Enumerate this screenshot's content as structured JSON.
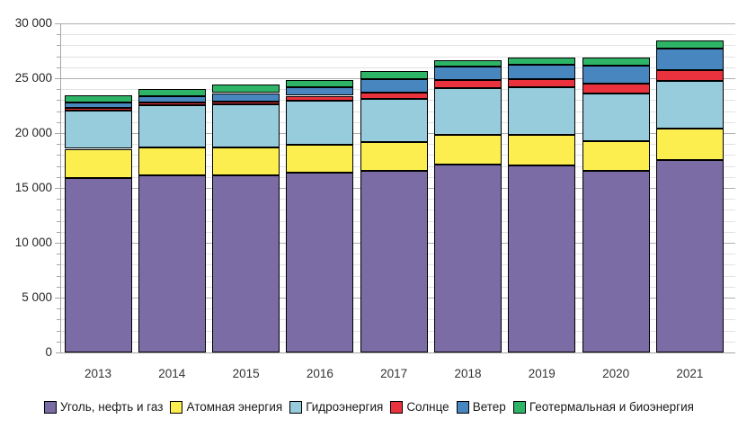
{
  "chart_data": {
    "type": "bar",
    "stacked": true,
    "title": "",
    "xlabel": "",
    "ylabel": "",
    "categories": [
      "2013",
      "2014",
      "2015",
      "2016",
      "2017",
      "2018",
      "2019",
      "2020",
      "2021"
    ],
    "series": [
      {
        "name": "Уголь, нефть и газ",
        "color": "#7b6ca5",
        "values": [
          15880,
          16150,
          16150,
          16400,
          16560,
          17110,
          17030,
          16560,
          17530
        ]
      },
      {
        "name": "Атомная энергия",
        "color": "#fcee4e",
        "values": [
          2680,
          2530,
          2530,
          2550,
          2610,
          2750,
          2830,
          2700,
          2880
        ]
      },
      {
        "name": "Гидроэнергия",
        "color": "#97ccdc",
        "values": [
          3520,
          3870,
          3960,
          4010,
          3960,
          4260,
          4310,
          4360,
          4310
        ]
      },
      {
        "name": "Солнце",
        "color": "#e9323d",
        "values": [
          250,
          250,
          270,
          440,
          580,
          740,
          770,
          910,
          1050
        ]
      },
      {
        "name": "Ветер",
        "color": "#4886c0",
        "values": [
          490,
          600,
          740,
          770,
          1230,
          1180,
          1290,
          1650,
          1920
        ]
      },
      {
        "name": "Геотермальная и биоэнергия",
        "color": "#2eb467",
        "values": [
          660,
          660,
          740,
          660,
          710,
          630,
          690,
          680,
          740
        ]
      }
    ],
    "totals": [
      23480,
      24060,
      24390,
      24830,
      25650,
      26670,
      26920,
      26860,
      28430
    ],
    "ylim": [
      0,
      30000
    ],
    "ytick_major_step": 5000,
    "ytick_minor_step": 1000,
    "ytick_labels": [
      "0",
      "5 000",
      "10 000",
      "15 000",
      "20 000",
      "25 000",
      "30 000"
    ],
    "grid": true,
    "legend_position": "bottom",
    "colors": {
      "bar_border": "#000000",
      "axis": "#a6a6a6",
      "major_grid": "#aeaeae",
      "minor_grid": "#e2e2e2",
      "tick_text": "#262626",
      "category_text": "#333333",
      "legend_text": "#1a1a1a"
    }
  }
}
